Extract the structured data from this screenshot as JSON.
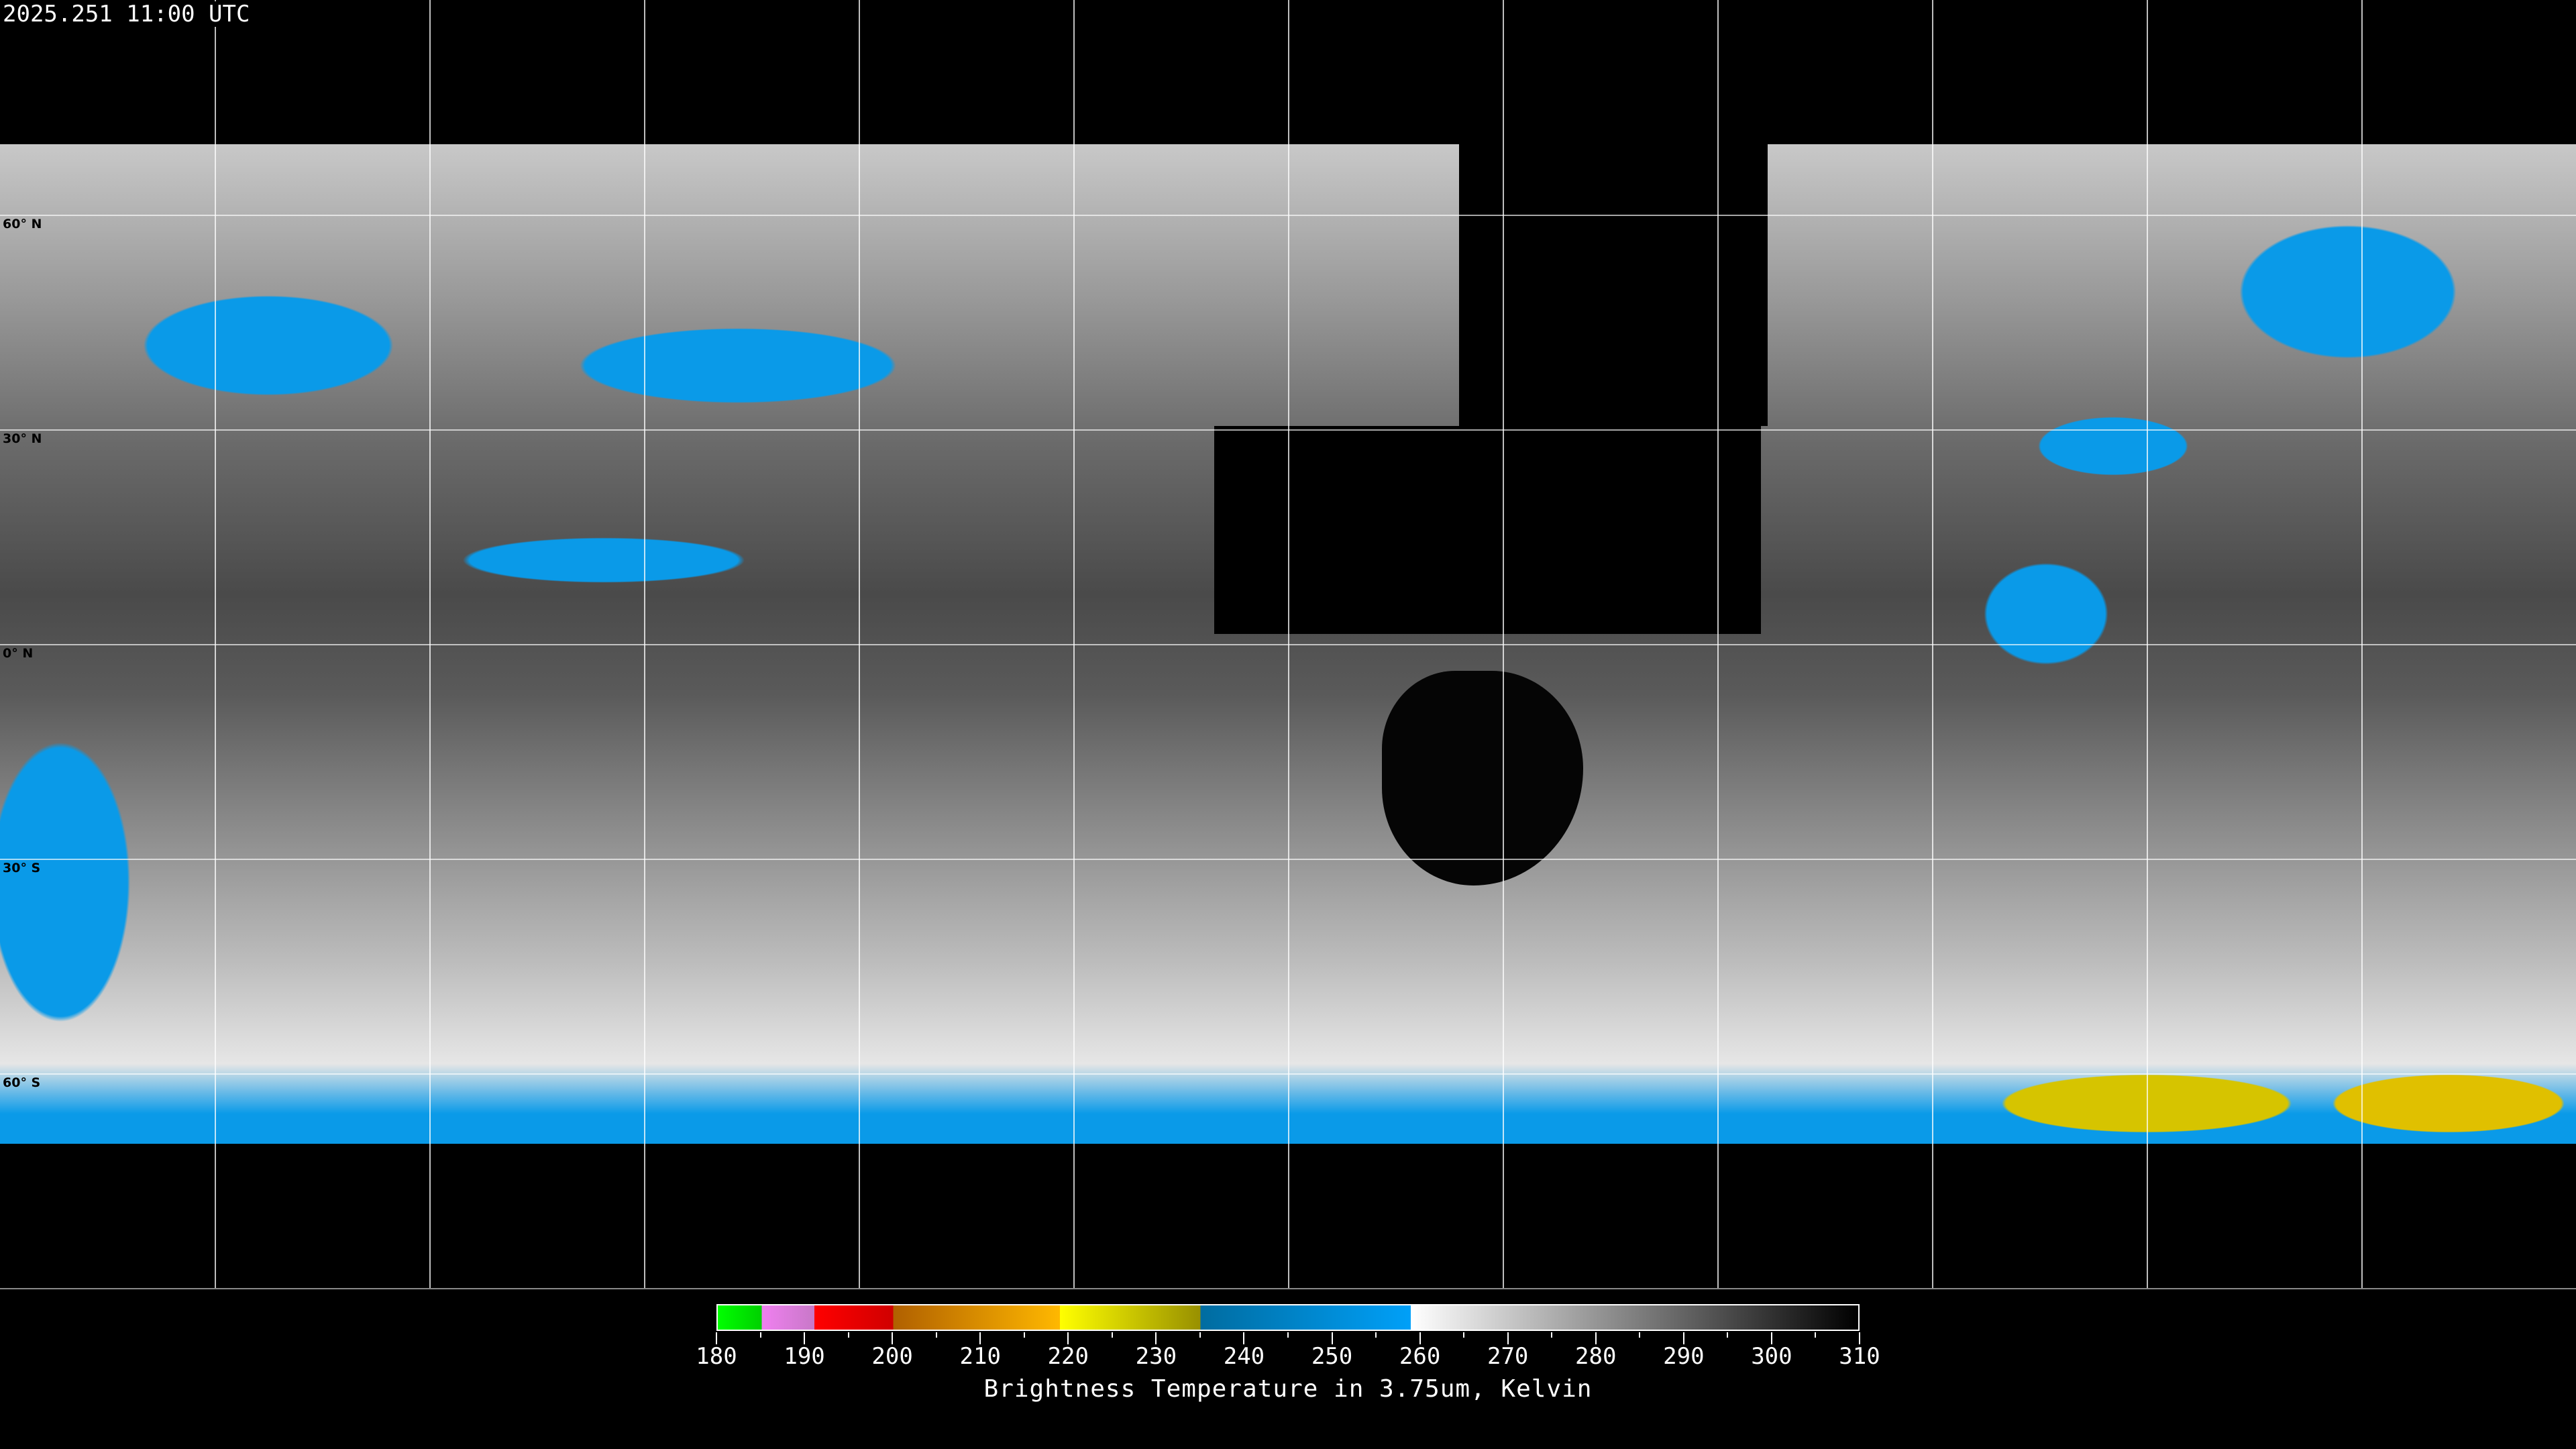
{
  "header": {
    "timestamp": "2025.251 11:00 UTC"
  },
  "map": {
    "projection": "equirectangular",
    "longitude_grid_step_deg": 30,
    "latitude_labels": [
      "60° N",
      "30° N",
      "0° N",
      "30° S",
      "60° S"
    ],
    "latitudes": [
      60,
      30,
      0,
      -30,
      -60
    ],
    "coastline_color": "#ffffff",
    "grid_color": "#ffffff"
  },
  "colorbar": {
    "title": "Brightness Temperature in 3.75um, Kelvin",
    "min": 180,
    "max": 310,
    "tick_labels": [
      "180",
      "190",
      "200",
      "210",
      "220",
      "230",
      "240",
      "250",
      "260",
      "270",
      "280",
      "290",
      "300",
      "310"
    ],
    "segments": [
      {
        "from": 180,
        "to": 185,
        "start": "#00ff00",
        "end": "#00d000"
      },
      {
        "from": 185,
        "to": 191,
        "start": "#f080f0",
        "end": "#c878c8"
      },
      {
        "from": 191,
        "to": 200,
        "start": "#ff0000",
        "end": "#d00000"
      },
      {
        "from": 200,
        "to": 219,
        "start": "#b06000",
        "end": "#ffb800"
      },
      {
        "from": 219,
        "to": 235,
        "start": "#ffff00",
        "end": "#989000"
      },
      {
        "from": 235,
        "to": 259,
        "start": "#006ca0",
        "end": "#00a0f8"
      },
      {
        "from": 259,
        "to": 310,
        "start": "#ffffff",
        "end": "#000000"
      }
    ]
  }
}
